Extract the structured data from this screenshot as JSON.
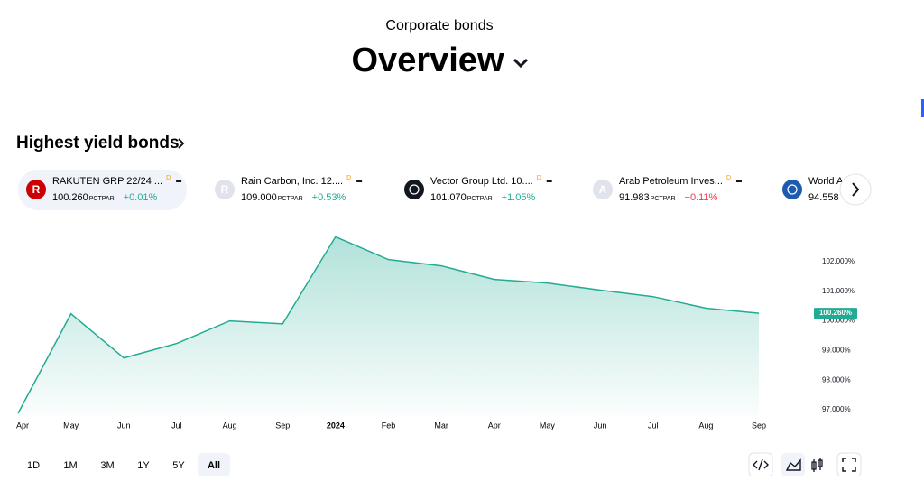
{
  "header": {
    "subtitle": "Corporate bonds",
    "title": "Overview"
  },
  "section_title": "Highest yield bonds",
  "bonds": [
    {
      "icon": "R",
      "icon_color": "#cc0000",
      "name": "RAKUTEN GRP 22/24 ...",
      "badge": "D",
      "price": "100.260",
      "unit": "PCTPAR",
      "change": "+0.01%",
      "change_color": "#22ab94",
      "selected": true
    },
    {
      "icon": "R",
      "icon_color": "#e0e3eb",
      "name": "Rain Carbon, Inc. 12....",
      "badge": "D",
      "price": "109.000",
      "unit": "PCTPAR",
      "change": "+0.53%",
      "change_color": "#22ab94",
      "selected": false
    },
    {
      "icon_color": "#131722",
      "name": "Vector Group Ltd. 10....",
      "badge": "D",
      "price": "101.070",
      "unit": "PCTPAR",
      "change": "+1.05%",
      "change_color": "#22ab94",
      "selected": false
    },
    {
      "icon": "A",
      "icon_color": "#e0e3eb",
      "name": "Arab Petroleum Inves...",
      "badge": "D",
      "price": "91.983",
      "unit": "PCTPAR",
      "change": "−0.11%",
      "change_color": "#f23645",
      "selected": false
    },
    {
      "icon_color": "#1e5bb0",
      "name": "World A",
      "price": "94.558",
      "selected": false
    }
  ],
  "chart_data": {
    "type": "area",
    "color": "#22ab94",
    "categories": [
      "Apr",
      "May",
      "Jun",
      "Jul",
      "Aug",
      "Sep",
      "2024",
      "Feb",
      "Mar",
      "Apr",
      "May",
      "Jun",
      "Jul",
      "Aug",
      "Sep"
    ],
    "values": [
      96.88,
      100.24,
      98.75,
      99.24,
      100.0,
      99.9,
      102.84,
      102.07,
      101.86,
      101.4,
      101.28,
      101.04,
      100.82,
      100.43,
      100.26
    ],
    "value_labels": [
      null,
      null,
      null,
      null,
      null,
      null,
      null,
      null,
      null,
      null,
      null,
      null,
      null,
      null,
      "100.260%"
    ],
    "ylim": [
      96.8,
      103.2
    ],
    "yticks": [
      {
        "value": 97,
        "label": "97.000%"
      },
      {
        "value": 98,
        "label": "98.000%"
      },
      {
        "value": 99,
        "label": "99.000%"
      },
      {
        "value": 100,
        "label": "100.000%"
      },
      {
        "value": 101,
        "label": "101.000%"
      },
      {
        "value": 102,
        "label": "102.000%"
      }
    ],
    "grid": false
  },
  "ranges": [
    "1D",
    "1M",
    "3M",
    "1Y",
    "5Y",
    "All"
  ],
  "selected_range": 5
}
